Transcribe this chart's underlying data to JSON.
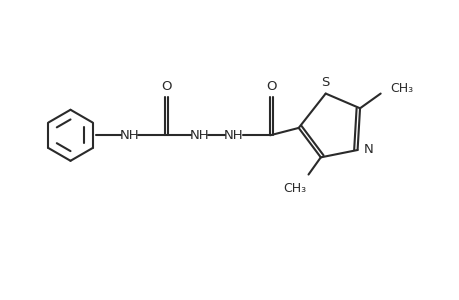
{
  "background_color": "#ffffff",
  "line_color": "#2a2a2a",
  "line_width": 1.5,
  "font_size": 9.5,
  "figsize": [
    4.6,
    3.0
  ],
  "dpi": 100,
  "xlim": [
    0,
    9.2
  ],
  "ylim": [
    0,
    6.0
  ]
}
